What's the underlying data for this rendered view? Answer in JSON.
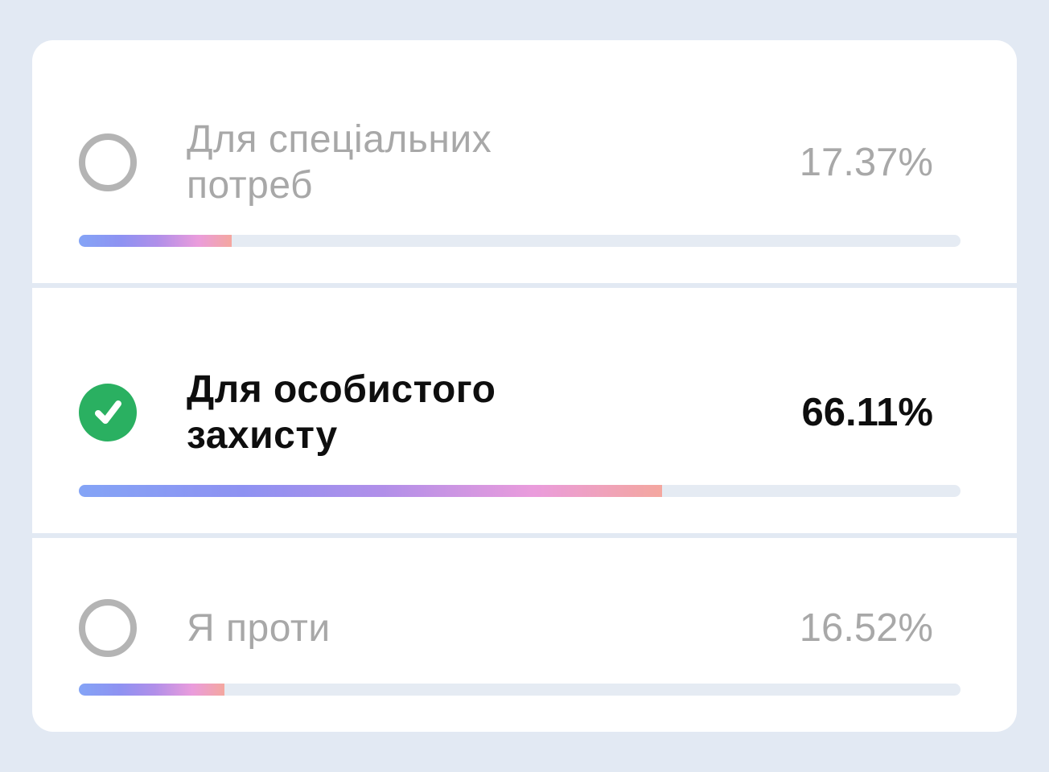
{
  "poll": {
    "options": [
      {
        "label": "Для спеціальних потреб",
        "percent": "17.37%",
        "percent_value": 17.37,
        "selected": false
      },
      {
        "label": "Для особистого захисту",
        "percent": "66.11%",
        "percent_value": 66.11,
        "selected": true
      },
      {
        "label": "Я проти",
        "percent": "16.52%",
        "percent_value": 16.52,
        "selected": false
      }
    ]
  },
  "colors": {
    "page_background": "#e2e9f3",
    "card_background": "#ffffff",
    "selected_check_green": "#2ab061",
    "unselected_ring_gray": "#b4b4b4",
    "muted_text": "#a8a8a8",
    "selected_text": "#0e0e0e",
    "bar_track": "#e5ebf3",
    "bar_gradient": [
      "#84a4f6",
      "#8e92f2",
      "#b18fe9",
      "#ea9cdc",
      "#f4a79f"
    ]
  }
}
